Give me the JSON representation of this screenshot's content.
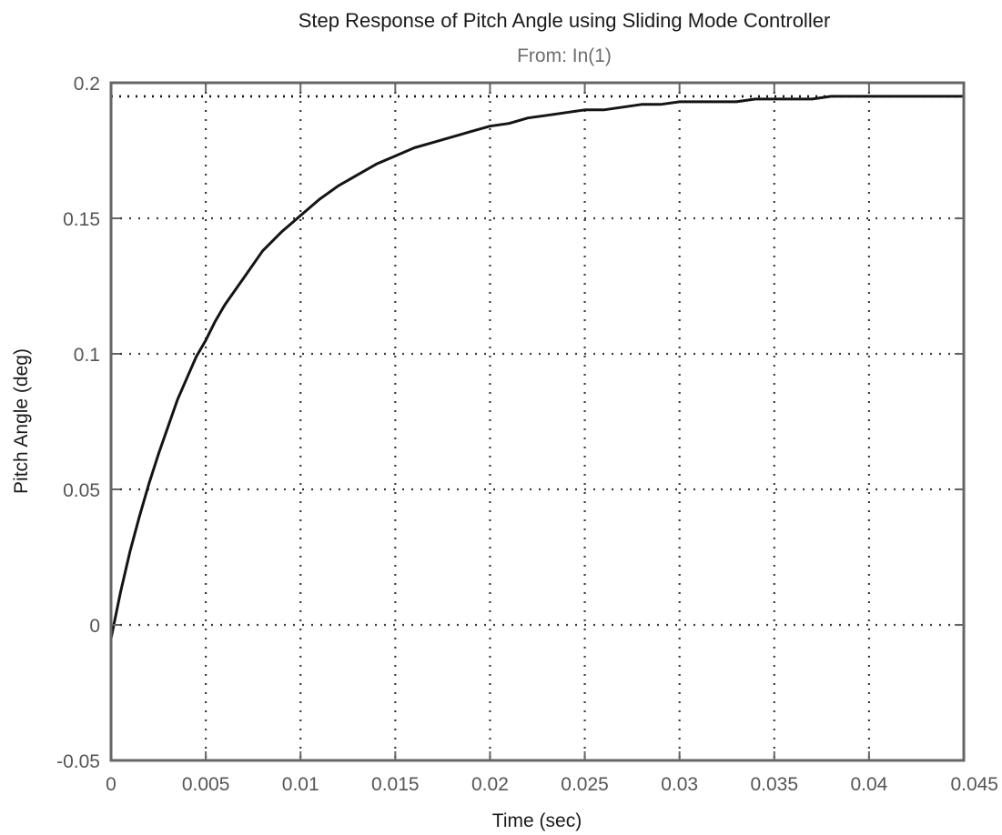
{
  "chart_data": {
    "type": "line",
    "title": "Step Response of Pitch Angle using Sliding Mode Controller",
    "subtitle": "From: In(1)",
    "xlabel": "Time (sec)",
    "ylabel": "Pitch Angle (deg)",
    "xlim": [
      0,
      0.045
    ],
    "ylim": [
      -0.05,
      0.2
    ],
    "x_ticks": [
      0,
      0.005,
      0.01,
      0.015,
      0.02,
      0.025,
      0.03,
      0.035,
      0.04,
      0.045
    ],
    "x_tick_labels": [
      "0",
      "0.005",
      "0.01",
      "0.015",
      "0.02",
      "0.025",
      "0.03",
      "0.035",
      "0.04",
      "0.045"
    ],
    "y_ticks": [
      -0.05,
      0,
      0.05,
      0.1,
      0.15,
      0.2
    ],
    "y_tick_labels": [
      "-0.05",
      "0",
      "0.05",
      "0.1",
      "0.15",
      "0.2"
    ],
    "grid": true,
    "steady_state_value": 0.195,
    "series": [
      {
        "x": [
          0,
          0.0005,
          0.001,
          0.0015,
          0.002,
          0.0025,
          0.003,
          0.0035,
          0.004,
          0.0045,
          0.005,
          0.0055,
          0.006,
          0.0065,
          0.007,
          0.0075,
          0.008,
          0.009,
          0.01,
          0.011,
          0.012,
          0.013,
          0.014,
          0.015,
          0.016,
          0.017,
          0.018,
          0.019,
          0.02,
          0.021,
          0.022,
          0.023,
          0.024,
          0.025,
          0.026,
          0.027,
          0.028,
          0.029,
          0.03,
          0.031,
          0.032,
          0.033,
          0.034,
          0.035,
          0.036,
          0.037,
          0.038,
          0.04,
          0.042,
          0.045
        ],
        "values": [
          -0.005,
          0.012,
          0.027,
          0.04,
          0.052,
          0.063,
          0.073,
          0.083,
          0.091,
          0.099,
          0.105,
          0.112,
          0.118,
          0.123,
          0.128,
          0.133,
          0.138,
          0.145,
          0.151,
          0.157,
          0.162,
          0.166,
          0.17,
          0.173,
          0.176,
          0.178,
          0.18,
          0.182,
          0.184,
          0.185,
          0.187,
          0.188,
          0.189,
          0.19,
          0.19,
          0.191,
          0.192,
          0.192,
          0.193,
          0.193,
          0.193,
          0.193,
          0.194,
          0.194,
          0.194,
          0.194,
          0.195,
          0.195,
          0.195,
          0.195
        ]
      }
    ]
  },
  "colors": {
    "series": "#141414",
    "grid": "#3a3a3a",
    "frame": "#666666",
    "title": "#1a1a1a",
    "subtitle": "#6e6e6e",
    "tick_labels": "#555555"
  }
}
